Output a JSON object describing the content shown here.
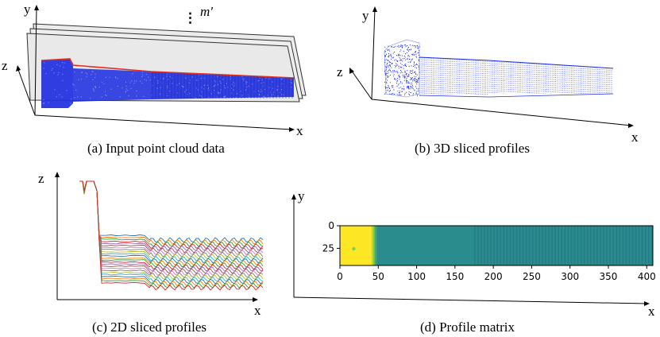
{
  "panels": {
    "a": {
      "caption": "(a) Input point cloud data",
      "axis_x": "x",
      "axis_y": "y",
      "axis_z": "z",
      "annotation": "m′",
      "dots": "⋮"
    },
    "b": {
      "caption": "(b) 3D sliced profiles",
      "axis_x": "x",
      "axis_y": "y",
      "axis_z": "z"
    },
    "c": {
      "caption": "(c) 2D sliced profiles",
      "axis_x": "x",
      "axis_z": "z"
    },
    "d": {
      "caption": "(d) Profile matrix",
      "axis_x": "x",
      "axis_y": "y"
    }
  },
  "colors": {
    "points": "#1f2fe0",
    "slice_edge": "#e03020",
    "plane_fill": "#e8e8e8",
    "matrix_low": "#440154",
    "matrix_mid": "#2a8c8c",
    "matrix_dark": "#1f5f7a",
    "matrix_high": "#fde725",
    "matrix_green": "#7ad151"
  },
  "chart_data": {
    "type": "heatmap",
    "title": "",
    "xlabel": "",
    "ylabel": "",
    "x_ticks": [
      "0",
      "50",
      "100",
      "150",
      "200",
      "250",
      "300",
      "350",
      "400"
    ],
    "y_ticks": [
      "0",
      "25"
    ],
    "xlim": [
      0,
      408
    ],
    "ylim": [
      44,
      0
    ],
    "regions": [
      {
        "x_range": [
          0,
          40
        ],
        "level": "high"
      },
      {
        "x_range": [
          40,
          48
        ],
        "level": "transition"
      },
      {
        "x_range": [
          48,
          175
        ],
        "level": "mid"
      },
      {
        "x_range": [
          175,
          408
        ],
        "level": "mid-striped"
      }
    ]
  },
  "profiles_chart": {
    "type": "line",
    "series_count": 24,
    "palette": [
      "#1f77b4",
      "#ff7f0e",
      "#2ca02c",
      "#d62728",
      "#9467bd",
      "#8c564b",
      "#e377c2",
      "#7f7f7f",
      "#bcbd22",
      "#17becf"
    ]
  }
}
